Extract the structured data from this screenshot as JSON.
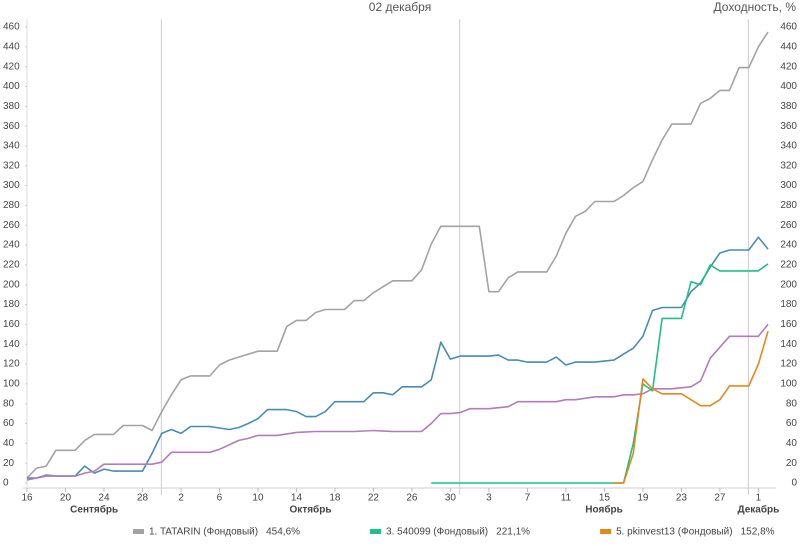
{
  "chart_data": {
    "type": "line",
    "title": "02 декабря",
    "y_label": "Доходность, %",
    "xlim": [
      "09-16",
      "12-02"
    ],
    "ylim": [
      0,
      460
    ],
    "yticks": [
      0,
      20,
      40,
      60,
      80,
      100,
      120,
      140,
      160,
      180,
      200,
      220,
      240,
      260,
      280,
      300,
      320,
      340,
      360,
      380,
      400,
      420,
      440,
      460
    ],
    "xticks": [
      {
        "value": "09-16",
        "label": "16"
      },
      {
        "value": "09-20",
        "label": "20"
      },
      {
        "value": "09-24",
        "label": "24"
      },
      {
        "value": "09-28",
        "label": "28"
      },
      {
        "value": "10-02",
        "label": "2"
      },
      {
        "value": "10-06",
        "label": "6"
      },
      {
        "value": "10-10",
        "label": "10"
      },
      {
        "value": "10-14",
        "label": "14"
      },
      {
        "value": "10-18",
        "label": "18"
      },
      {
        "value": "10-22",
        "label": "22"
      },
      {
        "value": "10-26",
        "label": "26"
      },
      {
        "value": "10-30",
        "label": "30"
      },
      {
        "value": "11-03",
        "label": "3"
      },
      {
        "value": "11-07",
        "label": "7"
      },
      {
        "value": "11-11",
        "label": "11"
      },
      {
        "value": "11-15",
        "label": "15"
      },
      {
        "value": "11-19",
        "label": "19"
      },
      {
        "value": "11-23",
        "label": "23"
      },
      {
        "value": "11-27",
        "label": "27"
      },
      {
        "value": "12-01",
        "label": "1"
      }
    ],
    "months": [
      {
        "value": "09",
        "label": "Сентябрь"
      },
      {
        "value": "10",
        "label": "Октябрь"
      },
      {
        "value": "11",
        "label": "Ноябрь"
      },
      {
        "value": "12",
        "label": "Декабрь"
      }
    ],
    "series": [
      {
        "name": "1. TATARIN (Фондовый)",
        "color": "#a3a3a3",
        "total": 454.6,
        "total_label": "454,6%",
        "x": [
          "09-16",
          "09-17",
          "09-18",
          "09-19",
          "09-21",
          "09-22",
          "09-23",
          "09-25",
          "09-26",
          "09-28",
          "09-29",
          "09-30",
          "10-01",
          "10-02",
          "10-03",
          "10-05",
          "10-06",
          "10-07",
          "10-08",
          "10-10",
          "10-12",
          "10-13",
          "10-14",
          "10-15",
          "10-16",
          "10-17",
          "10-19",
          "10-20",
          "10-21",
          "10-22",
          "10-23",
          "10-24",
          "10-26",
          "10-27",
          "10-28",
          "10-29",
          "11-02",
          "11-03",
          "11-04",
          "11-05",
          "11-06",
          "11-09",
          "11-10",
          "11-11",
          "11-12",
          "11-13",
          "11-14",
          "11-16",
          "11-17",
          "11-18",
          "11-19",
          "11-20",
          "11-21",
          "11-22",
          "11-24",
          "11-25",
          "11-26",
          "11-27",
          "11-28",
          "11-29",
          "11-30",
          "12-01",
          "12-02"
        ],
        "values": [
          5,
          15,
          17,
          33,
          33,
          43,
          49,
          49,
          58,
          58,
          53,
          72,
          89,
          104,
          108,
          108,
          119,
          124,
          127,
          133,
          133,
          158,
          164,
          164,
          172,
          175,
          175,
          184,
          184,
          192,
          198,
          204,
          204,
          215,
          241,
          259,
          259,
          193,
          193,
          207,
          213,
          213,
          229,
          252,
          269,
          274,
          284,
          284,
          290,
          298,
          304,
          326,
          346,
          362,
          362,
          383,
          388,
          396,
          396,
          419,
          419,
          440,
          455
        ]
      },
      {
        "color": "#4a8cb0",
        "x": [
          "09-16",
          "09-17",
          "09-18",
          "09-19",
          "09-21",
          "09-22",
          "09-23",
          "09-24",
          "09-25",
          "09-26",
          "09-28",
          "09-29",
          "09-30",
          "10-01",
          "10-02",
          "10-03",
          "10-05",
          "10-07",
          "10-08",
          "10-09",
          "10-10",
          "10-11",
          "10-13",
          "10-14",
          "10-15",
          "10-16",
          "10-17",
          "10-18",
          "10-21",
          "10-22",
          "10-23",
          "10-24",
          "10-25",
          "10-27",
          "10-28",
          "10-29",
          "10-30",
          "10-31",
          "11-03",
          "11-04",
          "11-05",
          "11-06",
          "11-07",
          "11-09",
          "11-10",
          "11-11",
          "11-12",
          "11-14",
          "11-16",
          "11-17",
          "11-18",
          "11-19",
          "11-20",
          "11-21",
          "11-23",
          "11-24",
          "11-25",
          "11-26",
          "11-27",
          "11-28",
          "11-30",
          "12-01",
          "12-02"
        ],
        "values": [
          5,
          5,
          8,
          7,
          7,
          17,
          10,
          14,
          12,
          12,
          12,
          30,
          50,
          54,
          50,
          57,
          57,
          54,
          56,
          60,
          65,
          74,
          74,
          72,
          67,
          67,
          72,
          82,
          82,
          91,
          91,
          89,
          97,
          97,
          104,
          142,
          125,
          128,
          128,
          129,
          124,
          124,
          122,
          122,
          127,
          119,
          122,
          122,
          124,
          130,
          136,
          148,
          174,
          177,
          177,
          193,
          202,
          218,
          232,
          235,
          235,
          248,
          236
        ]
      },
      {
        "color": "#b27cba",
        "x": [
          "09-16",
          "09-18",
          "09-21",
          "09-22",
          "09-23",
          "09-24",
          "09-26",
          "09-29",
          "09-30",
          "10-01",
          "10-02",
          "10-05",
          "10-06",
          "10-08",
          "10-09",
          "10-10",
          "10-12",
          "10-14",
          "10-16",
          "10-20",
          "10-22",
          "10-24",
          "10-27",
          "10-28",
          "10-29",
          "10-30",
          "10-31",
          "11-01",
          "11-03",
          "11-05",
          "11-06",
          "11-08",
          "11-10",
          "11-11",
          "11-12",
          "11-14",
          "11-16",
          "11-17",
          "11-18",
          "11-19",
          "11-20",
          "11-22",
          "11-24",
          "11-25",
          "11-26",
          "11-27",
          "11-28",
          "11-30",
          "12-01",
          "12-02"
        ],
        "values": [
          3,
          7,
          7,
          10,
          12,
          19,
          19,
          19,
          21,
          31,
          31,
          31,
          34,
          43,
          45,
          48,
          48,
          51,
          52,
          52,
          53,
          52,
          52,
          60,
          70,
          70,
          71,
          75,
          75,
          77,
          82,
          82,
          82,
          84,
          84,
          87,
          87,
          89,
          89,
          90,
          95,
          95,
          97,
          103,
          126,
          137,
          148,
          148,
          148,
          160
        ]
      },
      {
        "name": "3. 540099 (Фондовый)",
        "color": "#1fbf87",
        "total": 221.1,
        "total_label": "221,1%",
        "x": [
          "10-28",
          "11-17",
          "11-18",
          "11-19",
          "11-20",
          "11-21",
          "11-23",
          "11-24",
          "11-25",
          "11-26",
          "11-27",
          "12-01",
          "12-02"
        ],
        "values": [
          0,
          0,
          40,
          100,
          93,
          166,
          166,
          203,
          200,
          220,
          214,
          214,
          221
        ]
      },
      {
        "name": "5. pkinvest13 (Фондовый)",
        "color": "#e08a1e",
        "total": 152.8,
        "total_label": "152,8%",
        "x": [
          "11-16",
          "11-17",
          "11-18",
          "11-19",
          "11-20",
          "11-21",
          "11-23",
          "11-24",
          "11-25",
          "11-26",
          "11-27",
          "11-28",
          "11-30",
          "12-01",
          "12-02"
        ],
        "values": [
          0,
          0,
          30,
          105,
          95,
          90,
          90,
          84,
          78,
          78,
          84,
          98,
          98,
          120,
          153
        ]
      }
    ]
  }
}
